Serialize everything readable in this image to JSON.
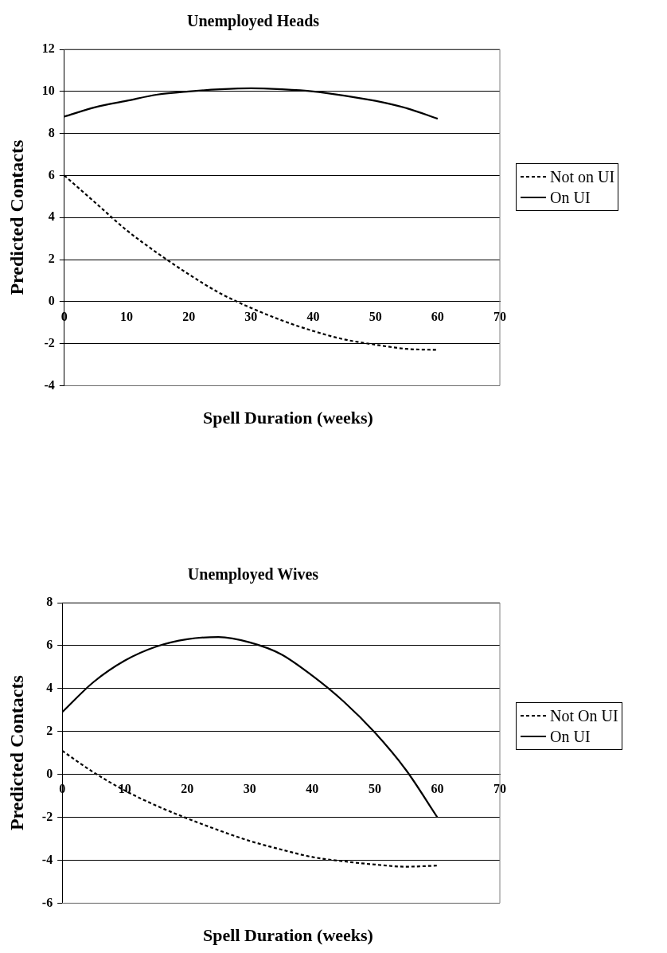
{
  "chart_data": [
    {
      "type": "line",
      "title": "Unemployed Heads",
      "xlabel": "Spell Duration (weeks)",
      "ylabel": "Predicted Contacts",
      "xlim": [
        0,
        70
      ],
      "xticks": [
        0,
        10,
        20,
        30,
        40,
        50,
        60,
        70
      ],
      "ylim": [
        -4,
        12
      ],
      "yticks": [
        -4,
        -2,
        0,
        2,
        4,
        6,
        8,
        10,
        12
      ],
      "grid": "y",
      "legend": "right",
      "marker": "none",
      "x": [
        0,
        5,
        10,
        15,
        20,
        25,
        30,
        35,
        40,
        45,
        50,
        55,
        60
      ],
      "series": [
        {
          "name": "Not on UI",
          "color": "#000000",
          "line_style": "dashed",
          "values": [
            6.0,
            4.7,
            3.4,
            2.3,
            1.3,
            0.4,
            -0.3,
            -0.9,
            -1.4,
            -1.8,
            -2.05,
            -2.25,
            -2.3
          ]
        },
        {
          "name": "On UI",
          "color": "#000000",
          "line_style": "solid",
          "values": [
            8.8,
            9.25,
            9.55,
            9.85,
            10.0,
            10.1,
            10.15,
            10.1,
            10.0,
            9.8,
            9.55,
            9.2,
            8.7
          ]
        }
      ]
    },
    {
      "type": "line",
      "title": "Unemployed Wives",
      "xlabel": "Spell Duration (weeks)",
      "ylabel": "Predicted Contacts",
      "xlim": [
        0,
        70
      ],
      "xticks": [
        0,
        10,
        20,
        30,
        40,
        50,
        60,
        70
      ],
      "ylim": [
        -6,
        8
      ],
      "yticks": [
        -6,
        -4,
        -2,
        0,
        2,
        4,
        6,
        8
      ],
      "grid": "y",
      "legend": "right",
      "marker": "none",
      "x": [
        0,
        5,
        10,
        15,
        20,
        25,
        30,
        35,
        40,
        45,
        50,
        55,
        60
      ],
      "series": [
        {
          "name": "Not On UI",
          "color": "#000000",
          "line_style": "dashed",
          "values": [
            1.1,
            0.1,
            -0.75,
            -1.45,
            -2.05,
            -2.6,
            -3.1,
            -3.5,
            -3.85,
            -4.05,
            -4.2,
            -4.3,
            -4.25
          ]
        },
        {
          "name": "On UI",
          "color": "#000000",
          "line_style": "solid",
          "values": [
            2.9,
            4.3,
            5.3,
            5.95,
            6.3,
            6.4,
            6.15,
            5.6,
            4.6,
            3.4,
            1.95,
            0.2,
            -2.0
          ]
        }
      ]
    }
  ]
}
